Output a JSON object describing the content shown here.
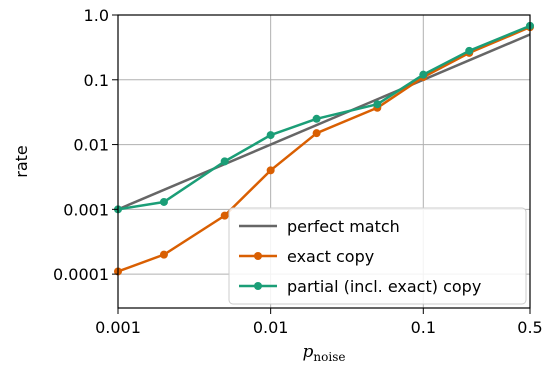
{
  "chart_data": {
    "type": "line",
    "xlabel": "p",
    "xlabel_subscript": "noise",
    "ylabel": "rate",
    "x_scale": "log",
    "y_scale": "log",
    "xlim": [
      0.001,
      0.5
    ],
    "ylim": [
      3e-05,
      1.0
    ],
    "x_ticks": [
      {
        "value": 0.001,
        "label": "0.001"
      },
      {
        "value": 0.01,
        "label": "0.01"
      },
      {
        "value": 0.1,
        "label": "0.1"
      },
      {
        "value": 0.5,
        "label": "0.5"
      }
    ],
    "y_ticks": [
      {
        "value": 0.0001,
        "label": "0.0001"
      },
      {
        "value": 0.001,
        "label": "0.001"
      },
      {
        "value": 0.01,
        "label": "0.01"
      },
      {
        "value": 0.1,
        "label": "0.1"
      },
      {
        "value": 1.0,
        "label": "1.0"
      }
    ],
    "grid": true,
    "legend_position": "bottom-right",
    "series": [
      {
        "name": "perfect match",
        "color": "#666666",
        "markers": false,
        "x": [
          0.001,
          0.5
        ],
        "y": [
          0.001,
          0.5
        ]
      },
      {
        "name": "exact copy",
        "color": "#d95f02",
        "markers": true,
        "x": [
          0.001,
          0.002,
          0.005,
          0.01,
          0.02,
          0.05,
          0.1,
          0.2,
          0.5
        ],
        "y": [
          0.00011,
          0.0002,
          0.0008,
          0.004,
          0.015,
          0.037,
          0.11,
          0.26,
          0.65
        ]
      },
      {
        "name": "partial (incl. exact) copy",
        "color": "#1b9e77",
        "markers": true,
        "x": [
          0.001,
          0.002,
          0.005,
          0.01,
          0.02,
          0.05,
          0.1,
          0.2,
          0.5
        ],
        "y": [
          0.001,
          0.0013,
          0.0055,
          0.014,
          0.025,
          0.042,
          0.12,
          0.28,
          0.68
        ]
      }
    ]
  }
}
